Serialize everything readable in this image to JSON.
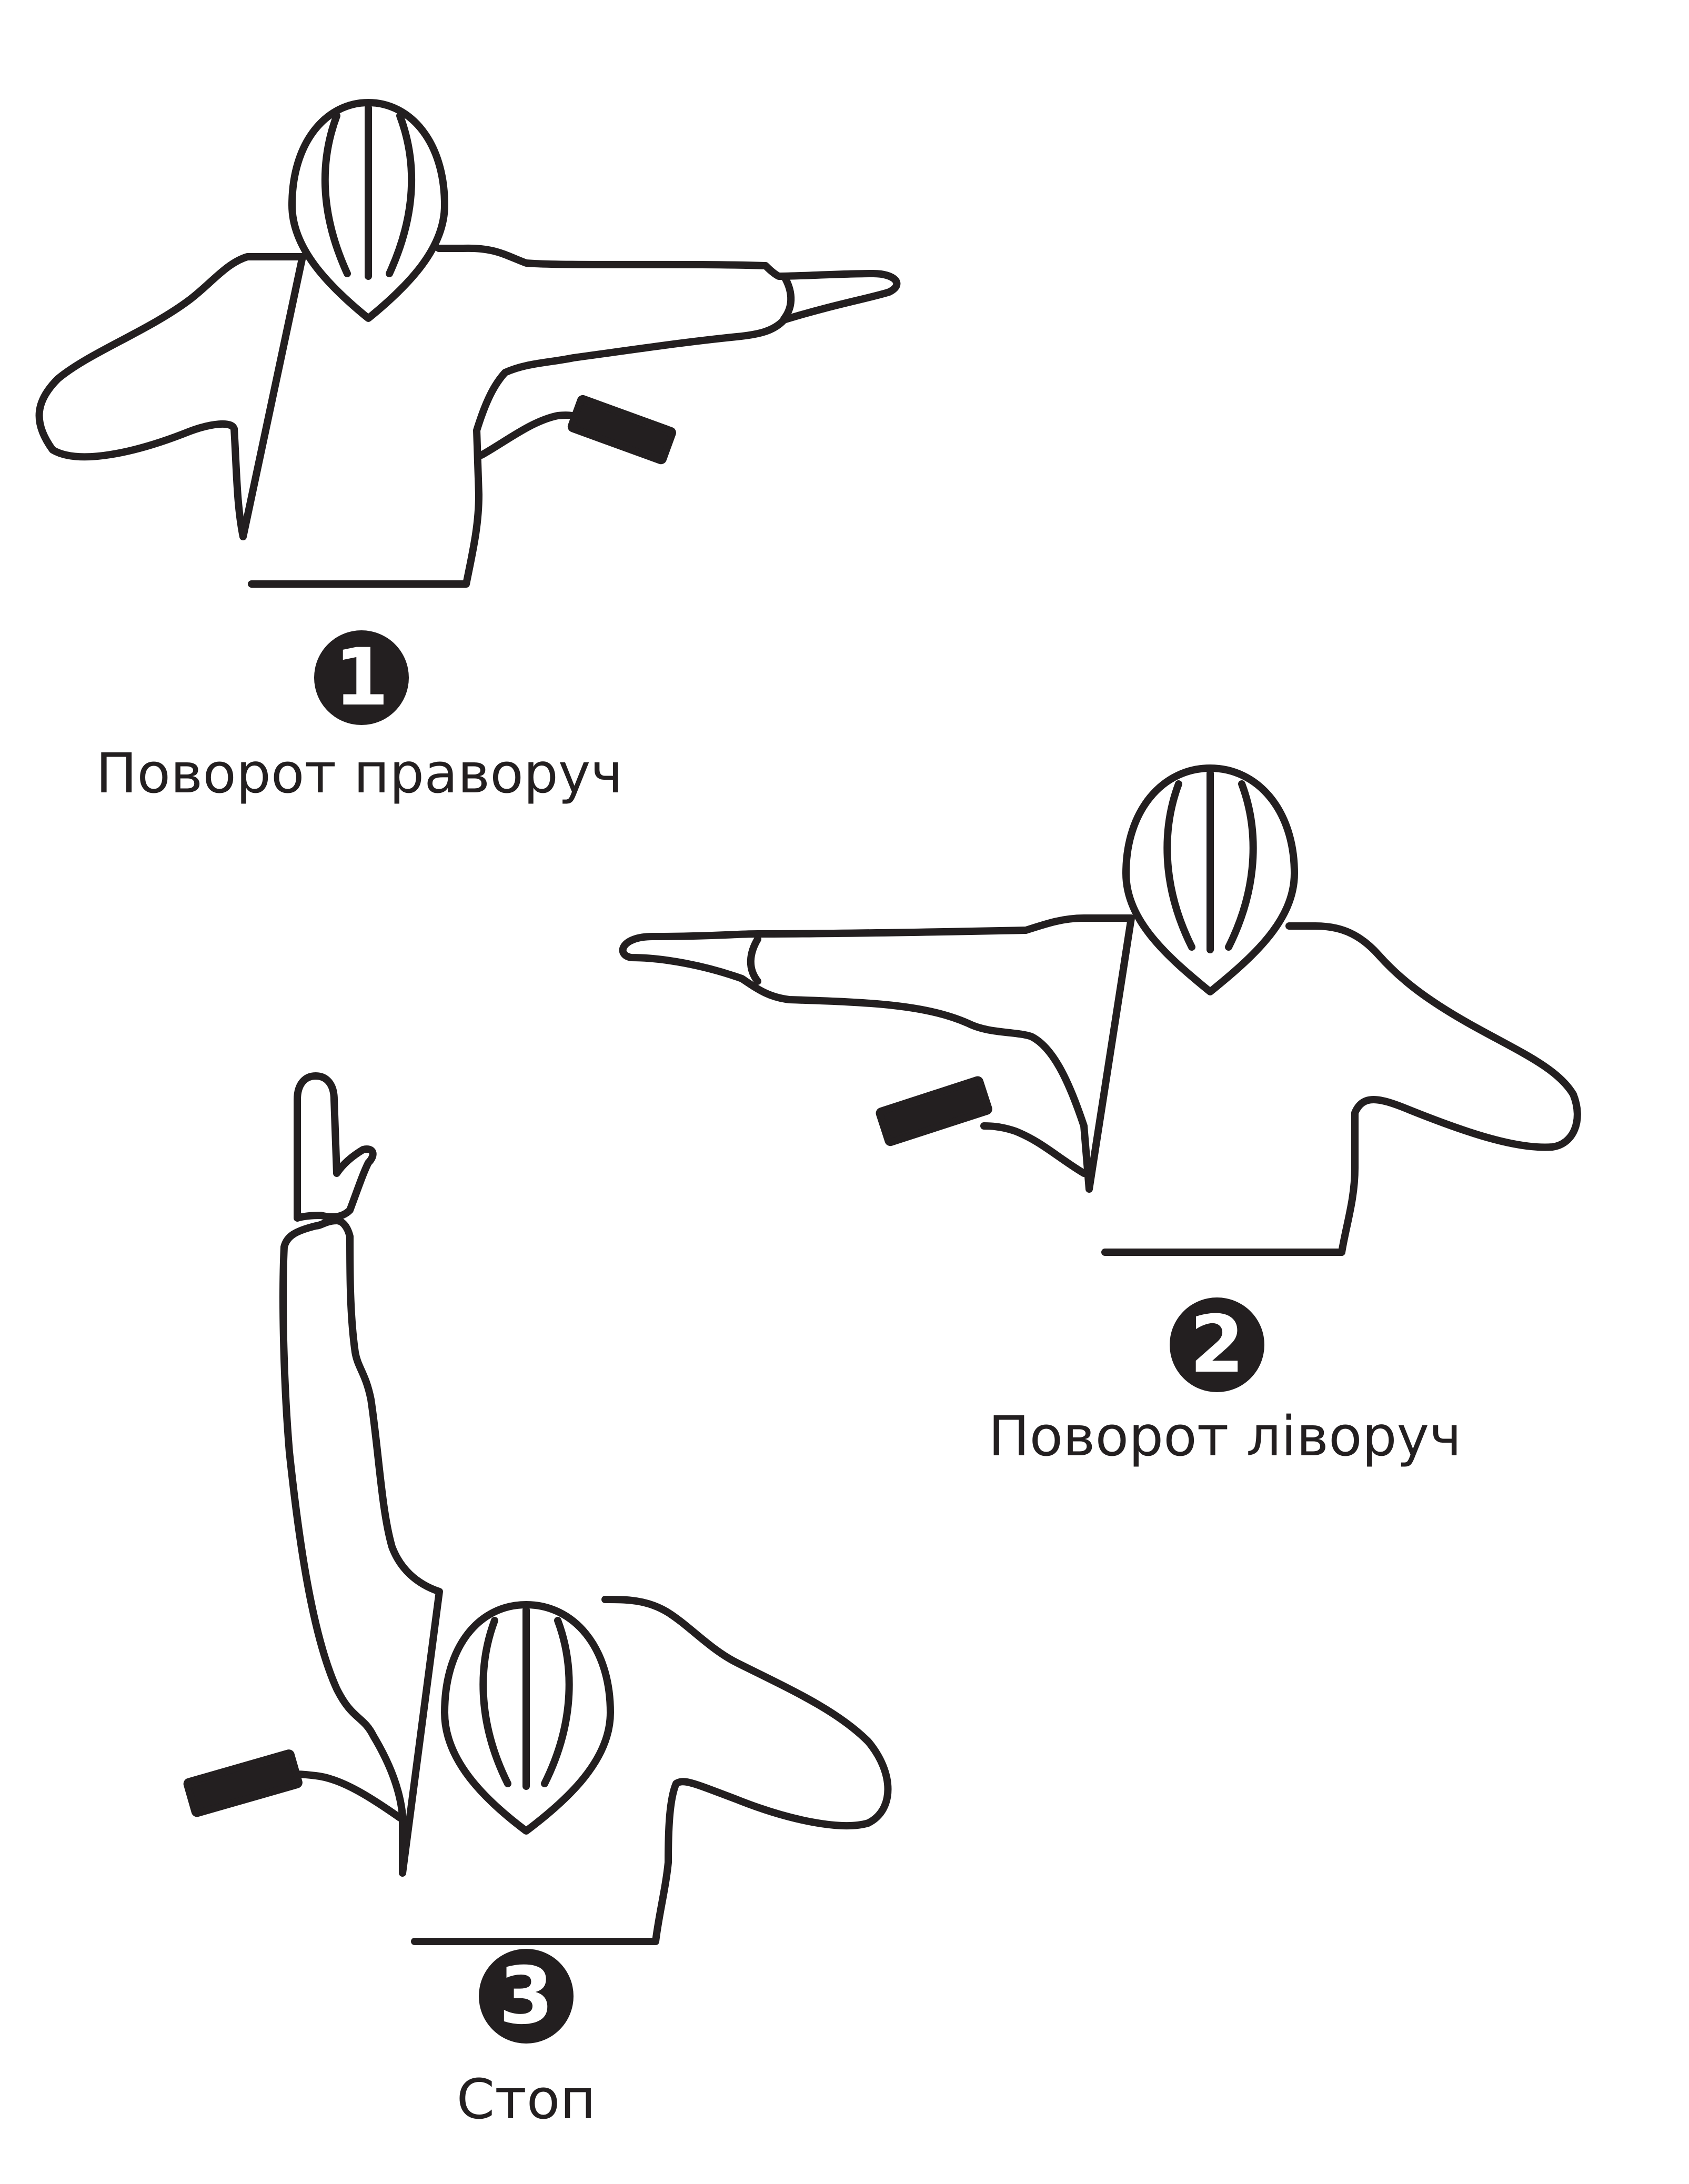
{
  "signals": [
    {
      "number": "1",
      "caption": "Поворот праворуч"
    },
    {
      "number": "2",
      "caption": "Поворот ліворуч"
    },
    {
      "number": "3",
      "caption": "Стоп"
    }
  ],
  "colors": {
    "ink": "#231f20",
    "background": "#ffffff"
  }
}
